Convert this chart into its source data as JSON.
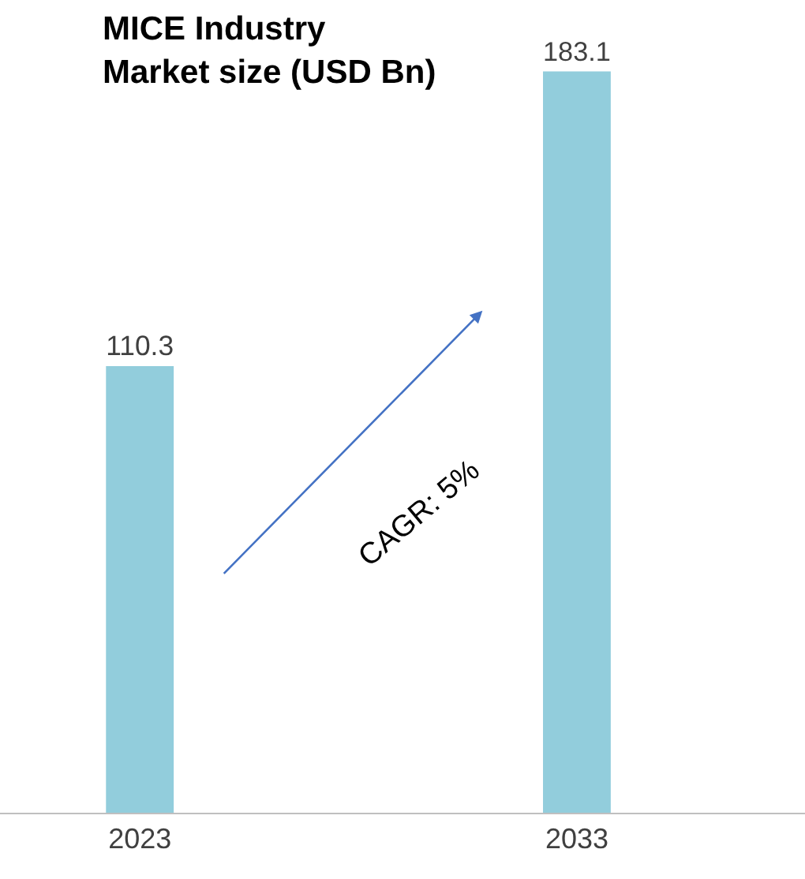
{
  "chart_data": {
    "type": "bar",
    "title": "MICE Industry\nMarket size (USD Bn)",
    "categories": [
      "2023",
      "2033"
    ],
    "values": [
      110.3,
      183.1
    ],
    "color": "#92cddc",
    "data_labels": true,
    "annotations": [
      "CAGR: 5%"
    ]
  }
}
